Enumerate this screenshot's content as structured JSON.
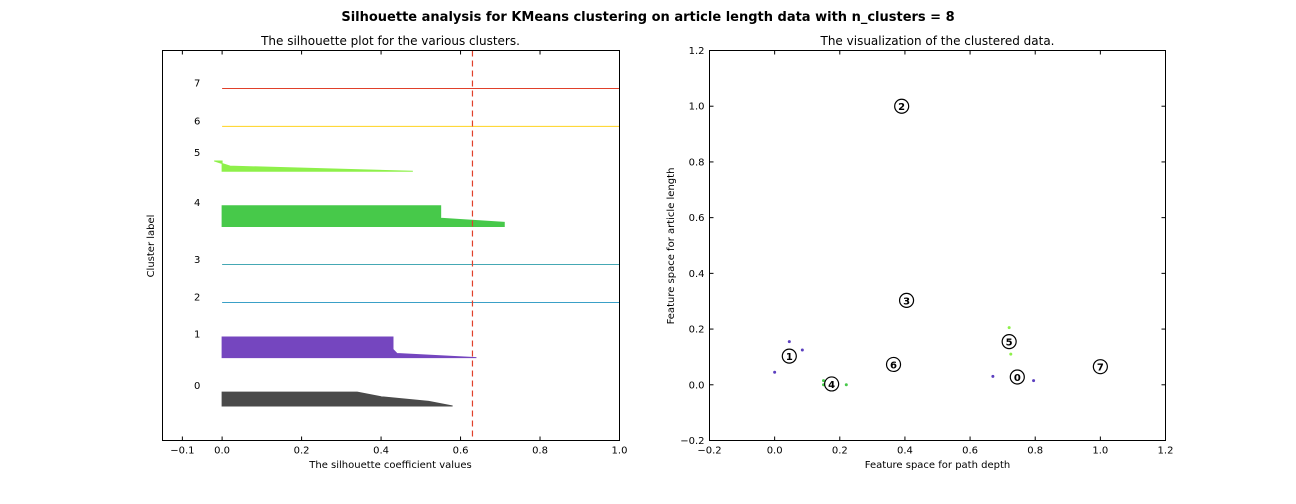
{
  "figure": {
    "suptitle": "Silhouette analysis for KMeans clustering on article length data with n_clusters = 8"
  },
  "chart_data": [
    {
      "type": "area",
      "title": "The silhouette plot for the various clusters.",
      "xlabel": "The silhouette coefficient values",
      "ylabel": "Cluster label",
      "xlim": [
        -0.15,
        1.0
      ],
      "xticks": [
        -0.1,
        0.0,
        0.2,
        0.4,
        0.6,
        0.8,
        1.0
      ],
      "xtick_labels": [
        "−0.1",
        "0.0",
        "0.2",
        "0.4",
        "0.6",
        "0.8",
        "1.0"
      ],
      "grid": false,
      "average_silhouette_score": 0.63,
      "average_line_color": "#e0402a",
      "clusters": [
        {
          "label": "0",
          "color": "#4a4a4a",
          "values": [
            0.58,
            0.52,
            0.4,
            0.34
          ]
        },
        {
          "label": "1",
          "color": "#7546bf",
          "values": [
            0.64,
            0.44,
            0.43,
            0.43,
            0.43,
            0.43
          ]
        },
        {
          "label": "2",
          "color": "#3aa0c7",
          "values": [
            1.0
          ]
        },
        {
          "label": "3",
          "color": "#45a8b4",
          "values": [
            1.0
          ]
        },
        {
          "label": "4",
          "color": "#47c94a",
          "values": [
            0.71,
            0.71,
            0.55,
            0.55,
            0.55,
            0.55
          ]
        },
        {
          "label": "5",
          "color": "#8ef04a",
          "values": [
            0.48,
            0.02,
            -0.02
          ]
        },
        {
          "label": "6",
          "color": "#ffd21f",
          "values": [
            1.0
          ]
        },
        {
          "label": "7",
          "color": "#e0402a",
          "values": [
            1.0
          ]
        }
      ]
    },
    {
      "type": "scatter",
      "title": "The visualization of the clustered data.",
      "xlabel": "Feature space for path depth",
      "ylabel": "Feature space for article length",
      "xlim": [
        -0.2,
        1.2
      ],
      "ylim": [
        -0.2,
        1.2
      ],
      "xticks": [
        -0.2,
        0.0,
        0.2,
        0.4,
        0.6,
        0.8,
        1.0,
        1.2
      ],
      "xtick_labels": [
        "−0.2",
        "0.0",
        "0.2",
        "0.4",
        "0.6",
        "0.8",
        "1.0",
        "1.2"
      ],
      "yticks": [
        -0.2,
        0.0,
        0.2,
        0.4,
        0.6,
        0.8,
        1.0,
        1.2
      ],
      "ytick_labels": [
        "−0.2",
        "0.0",
        "0.2",
        "0.4",
        "0.6",
        "0.8",
        "1.0",
        "1.2"
      ],
      "grid": false,
      "points": [
        {
          "x": 0.045,
          "y": 0.155,
          "color": "#5b3fbf"
        },
        {
          "x": 0.085,
          "y": 0.125,
          "color": "#5b3fbf"
        },
        {
          "x": 0.0,
          "y": 0.045,
          "color": "#5b3fbf"
        },
        {
          "x": 0.15,
          "y": 0.015,
          "color": "#47c94a"
        },
        {
          "x": 0.15,
          "y": 0.0,
          "color": "#47c94a"
        },
        {
          "x": 0.22,
          "y": 0.0,
          "color": "#47c94a"
        },
        {
          "x": 0.72,
          "y": 0.205,
          "color": "#8ef04a"
        },
        {
          "x": 0.725,
          "y": 0.11,
          "color": "#8ef04a"
        },
        {
          "x": 0.67,
          "y": 0.03,
          "color": "#5b3fbf"
        },
        {
          "x": 0.795,
          "y": 0.015,
          "color": "#5b3fbf"
        }
      ],
      "centers": [
        {
          "label": "0",
          "x": 0.745,
          "y": 0.028
        },
        {
          "label": "1",
          "x": 0.045,
          "y": 0.103
        },
        {
          "label": "2",
          "x": 0.39,
          "y": 1.0
        },
        {
          "label": "3",
          "x": 0.405,
          "y": 0.303
        },
        {
          "label": "4",
          "x": 0.175,
          "y": 0.003
        },
        {
          "label": "5",
          "x": 0.72,
          "y": 0.155
        },
        {
          "label": "6",
          "x": 0.365,
          "y": 0.073
        },
        {
          "label": "7",
          "x": 1.0,
          "y": 0.065
        }
      ]
    }
  ]
}
